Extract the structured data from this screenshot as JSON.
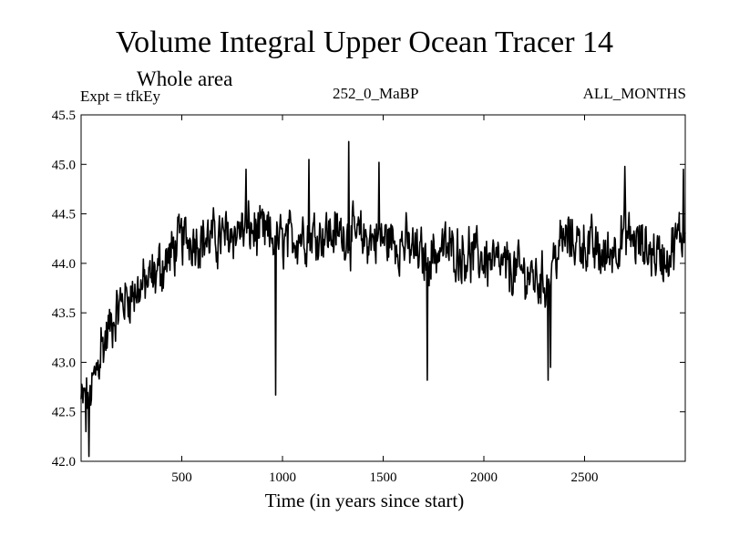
{
  "header": {
    "title": "Volume Integral Upper Ocean Tracer 14",
    "subtitle": "Whole area",
    "experiment": "Expt = tfkEy",
    "run": "252_0_MaBP",
    "months": "ALL_MONTHS"
  },
  "chart_data": {
    "type": "line",
    "title": "Volume Integral Upper Ocean Tracer 14",
    "xlabel": "Time (in years since start)",
    "ylabel": "",
    "xlim": [
      0,
      3000
    ],
    "ylim": [
      42.0,
      45.5
    ],
    "xticks": [
      500,
      1000,
      1500,
      2000,
      2500
    ],
    "yticks": [
      42.0,
      42.5,
      43.0,
      43.5,
      44.0,
      44.5,
      45.0,
      45.5
    ],
    "grid": false,
    "color": "#000000",
    "series_step": 3,
    "trend": [
      [
        0,
        42.6
      ],
      [
        50,
        42.7
      ],
      [
        100,
        43.1
      ],
      [
        150,
        43.4
      ],
      [
        200,
        43.6
      ],
      [
        250,
        43.7
      ],
      [
        300,
        43.75
      ],
      [
        350,
        43.85
      ],
      [
        400,
        43.95
      ],
      [
        450,
        44.1
      ],
      [
        500,
        44.25
      ],
      [
        600,
        44.25
      ],
      [
        700,
        44.25
      ],
      [
        800,
        44.35
      ],
      [
        900,
        44.3
      ],
      [
        1000,
        44.2
      ],
      [
        1100,
        44.3
      ],
      [
        1200,
        44.3
      ],
      [
        1300,
        44.3
      ],
      [
        1400,
        44.25
      ],
      [
        1500,
        44.25
      ],
      [
        1600,
        44.2
      ],
      [
        1700,
        44.05
      ],
      [
        1800,
        44.15
      ],
      [
        1900,
        44.1
      ],
      [
        2000,
        44.05
      ],
      [
        2100,
        43.95
      ],
      [
        2200,
        43.9
      ],
      [
        2300,
        43.8
      ],
      [
        2350,
        44.05
      ],
      [
        2400,
        44.25
      ],
      [
        2500,
        44.2
      ],
      [
        2600,
        44.05
      ],
      [
        2700,
        44.3
      ],
      [
        2800,
        44.15
      ],
      [
        2900,
        44.05
      ],
      [
        3000,
        44.35
      ]
    ],
    "amplitude": 0.32,
    "notable_points": [
      [
        40,
        42.05
      ],
      [
        25,
        42.3
      ],
      [
        100,
        43.35
      ],
      [
        390,
        44.2
      ],
      [
        820,
        44.95
      ],
      [
        965,
        42.67
      ],
      [
        1130,
        45.05
      ],
      [
        1330,
        45.23
      ],
      [
        1480,
        45.02
      ],
      [
        1720,
        42.82
      ],
      [
        2320,
        42.82
      ],
      [
        2330,
        42.95
      ],
      [
        2700,
        44.98
      ],
      [
        2990,
        44.95
      ]
    ]
  }
}
